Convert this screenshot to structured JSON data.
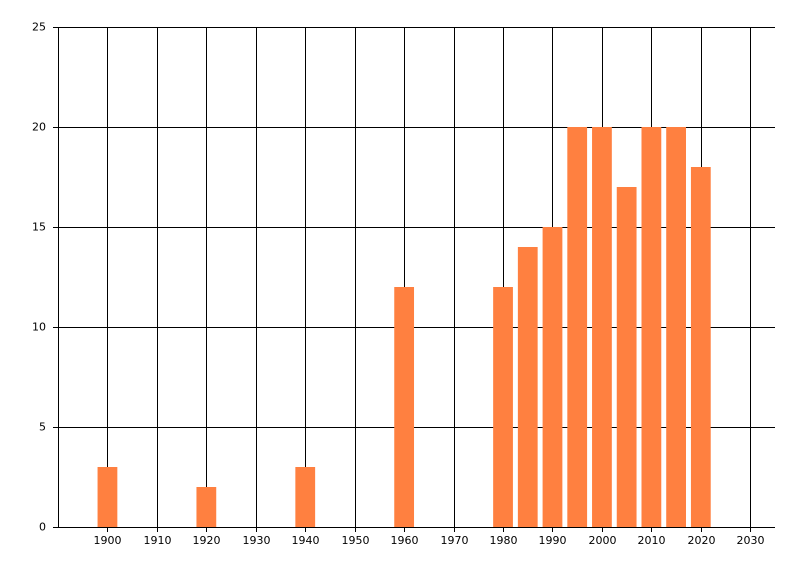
{
  "chart_data": {
    "type": "bar",
    "x": [
      1900,
      1920,
      1940,
      1960,
      1980,
      1985,
      1990,
      1995,
      2000,
      2005,
      2010,
      2015,
      2020
    ],
    "values": [
      3,
      2,
      3,
      12,
      12,
      14,
      15,
      20,
      20,
      17,
      20,
      20,
      18
    ],
    "color": "#ff8040",
    "xlim": [
      1890,
      2035
    ],
    "xticks": [
      1900,
      1910,
      1920,
      1930,
      1940,
      1950,
      1960,
      1970,
      1980,
      1990,
      2000,
      2010,
      2020,
      2030
    ],
    "ylim": [
      0,
      25
    ],
    "yticks": [
      0,
      5,
      10,
      15,
      20,
      25
    ],
    "grid": true
  }
}
